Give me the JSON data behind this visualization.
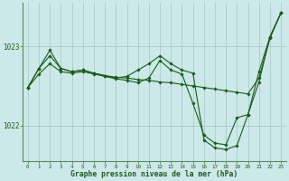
{
  "background_color": "#cce8e8",
  "grid_color": "#aacccc",
  "line_color": "#1a5c1a",
  "marker_color": "#1a5c1a",
  "title": "Graphe pression niveau de la mer (hPa)",
  "ylabel_ticks": [
    1022,
    1023
  ],
  "x_labels": [
    "0",
    "1",
    "2",
    "3",
    "4",
    "5",
    "6",
    "7",
    "8",
    "9",
    "10",
    "11",
    "12",
    "13",
    "14",
    "15",
    "16",
    "17",
    "18",
    "19",
    "20",
    "21",
    "22",
    "23"
  ],
  "xlim": [
    -0.5,
    23.5
  ],
  "ylim": [
    1021.55,
    1023.55
  ],
  "series": [
    [
      1022.48,
      1022.72,
      1022.88,
      1022.72,
      1022.68,
      1022.7,
      1022.66,
      1022.63,
      1022.61,
      1022.6,
      1022.58,
      1022.57,
      1022.55,
      1022.54,
      1022.52,
      1022.5,
      1022.48,
      1022.46,
      1022.44,
      1022.42,
      1022.4,
      1022.6,
      1023.1,
      1023.42
    ],
    [
      1022.48,
      1022.72,
      1022.95,
      1022.72,
      1022.68,
      1022.7,
      1022.66,
      1022.63,
      1022.6,
      1022.62,
      1022.7,
      1022.78,
      1022.88,
      1022.78,
      1022.7,
      1022.66,
      1021.82,
      1021.72,
      1021.7,
      1021.75,
      1022.14,
      1022.55,
      1023.12,
      1023.42
    ],
    [
      1022.48,
      1022.65,
      1022.78,
      1022.68,
      1022.66,
      1022.68,
      1022.65,
      1022.62,
      1022.59,
      1022.57,
      1022.54,
      1022.6,
      1022.82,
      1022.7,
      1022.65,
      1022.28,
      1021.88,
      1021.78,
      1021.76,
      1022.1,
      1022.14,
      1022.68,
      1023.12,
      1023.42
    ]
  ]
}
